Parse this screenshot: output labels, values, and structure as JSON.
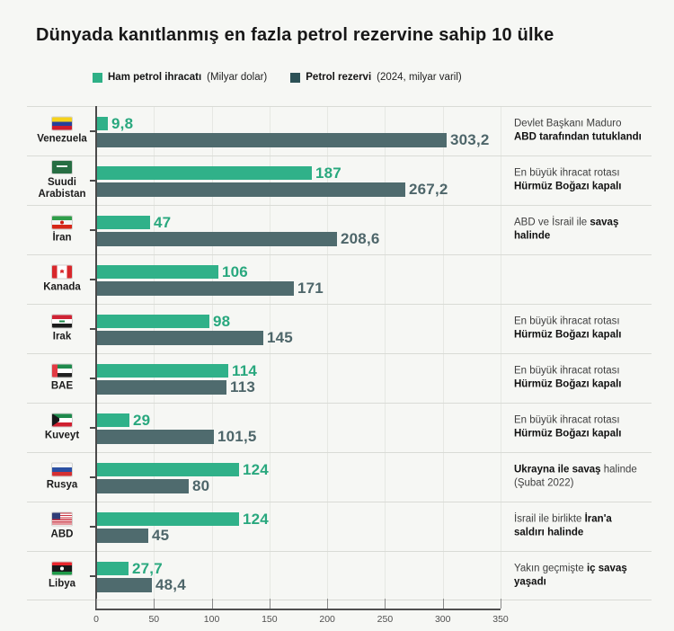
{
  "chart_data": {
    "type": "bar",
    "orientation": "horizontal",
    "title": "Dünyada kanıtlanmış en fazla petrol rezervine sahip 10 ülke",
    "xlim": [
      0,
      350
    ],
    "x_ticks": [
      "0",
      "50",
      "100",
      "150",
      "200",
      "250",
      "300",
      "350"
    ],
    "grid": "vertical-light",
    "legend_position": "top",
    "series": [
      {
        "name": "Ham petrol ihracatı (Milyar dolar)",
        "key": "export"
      },
      {
        "name": "Petrol rezervi (2024, milyar varil)",
        "key": "reserve"
      }
    ],
    "colors": {
      "export_bar": "#30b189",
      "reserve_bar": "#4f6b6e",
      "export_value": "#29a87e",
      "reserve_value": "#4e666a",
      "legend_export": "#2eb086",
      "legend_reserve": "#2c5156"
    },
    "countries": [
      {
        "flag": "venezuela",
        "name": "Venezuela",
        "export": 9.8,
        "export_label": "9,8",
        "reserve": 303.2,
        "reserve_label": "303,2",
        "note": [
          [
            [
              "Devlet Başkanı Maduro",
              false
            ]
          ],
          [
            [
              "ABD tarafından tutuklandı",
              true
            ]
          ]
        ]
      },
      {
        "flag": "saudi",
        "name": "Suudi\nArabistan",
        "export": 187,
        "export_label": "187",
        "reserve": 267.2,
        "reserve_label": "267,2",
        "note": [
          [
            [
              "En büyük ihracat rotası",
              false
            ]
          ],
          [
            [
              "Hürmüz Boğazı kapalı",
              true
            ]
          ]
        ]
      },
      {
        "flag": "iran",
        "name": "İran",
        "export": 47,
        "export_label": "47",
        "reserve": 208.6,
        "reserve_label": "208,6",
        "note": [
          [
            [
              "ABD ve İsrail ile ",
              false
            ],
            [
              "savaş",
              true
            ]
          ],
          [
            [
              "halinde",
              true
            ]
          ]
        ]
      },
      {
        "flag": "canada",
        "name": "Kanada",
        "export": 106,
        "export_label": "106",
        "reserve": 171,
        "reserve_label": "171",
        "note": []
      },
      {
        "flag": "iraq",
        "name": "Irak",
        "export": 98,
        "export_label": "98",
        "reserve": 145,
        "reserve_label": "145",
        "note": [
          [
            [
              "En büyük ihracat rotası",
              false
            ]
          ],
          [
            [
              "Hürmüz Boğazı kapalı",
              true
            ]
          ]
        ]
      },
      {
        "flag": "bae",
        "name": "BAE",
        "export": 114,
        "export_label": "114",
        "reserve": 113,
        "reserve_label": "113",
        "note": [
          [
            [
              "En büyük ihracat rotası",
              false
            ]
          ],
          [
            [
              "Hürmüz Boğazı kapalı",
              true
            ]
          ]
        ]
      },
      {
        "flag": "kuwait",
        "name": "Kuveyt",
        "export": 29,
        "export_label": "29",
        "reserve": 101.5,
        "reserve_label": "101,5",
        "note": [
          [
            [
              "En büyük ihracat rotası",
              false
            ]
          ],
          [
            [
              "Hürmüz Boğazı kapalı",
              true
            ]
          ]
        ]
      },
      {
        "flag": "russia",
        "name": "Rusya",
        "export": 124,
        "export_label": "124",
        "reserve": 80,
        "reserve_label": "80",
        "note": [
          [
            [
              "Ukrayna ile savaş",
              true
            ],
            [
              " halinde",
              false
            ]
          ],
          [
            [
              "(Şubat 2022)",
              false
            ]
          ]
        ]
      },
      {
        "flag": "abd",
        "name": "ABD",
        "export": 124,
        "export_label": "124",
        "reserve": 45,
        "reserve_label": "45",
        "note": [
          [
            [
              "İsrail ile birlikte ",
              false
            ],
            [
              "İran'a",
              true
            ]
          ],
          [
            [
              "saldırı halinde",
              true
            ]
          ]
        ]
      },
      {
        "flag": "libya",
        "name": "Libya",
        "export": 27.7,
        "export_label": "27,7",
        "reserve": 48.4,
        "reserve_label": "48,4",
        "note": [
          [
            [
              "Yakın geçmişte ",
              false
            ],
            [
              "iç savaş",
              true
            ]
          ],
          [
            [
              "yaşadı",
              true
            ]
          ]
        ]
      }
    ]
  },
  "legend": {
    "items": [
      {
        "name": "exports",
        "bold": "Ham petrol ihracatı",
        "rest": " (Milyar dolar)"
      },
      {
        "name": "reserves",
        "bold": "Petrol rezervi",
        "rest": " (2024, milyar varil)"
      }
    ]
  }
}
